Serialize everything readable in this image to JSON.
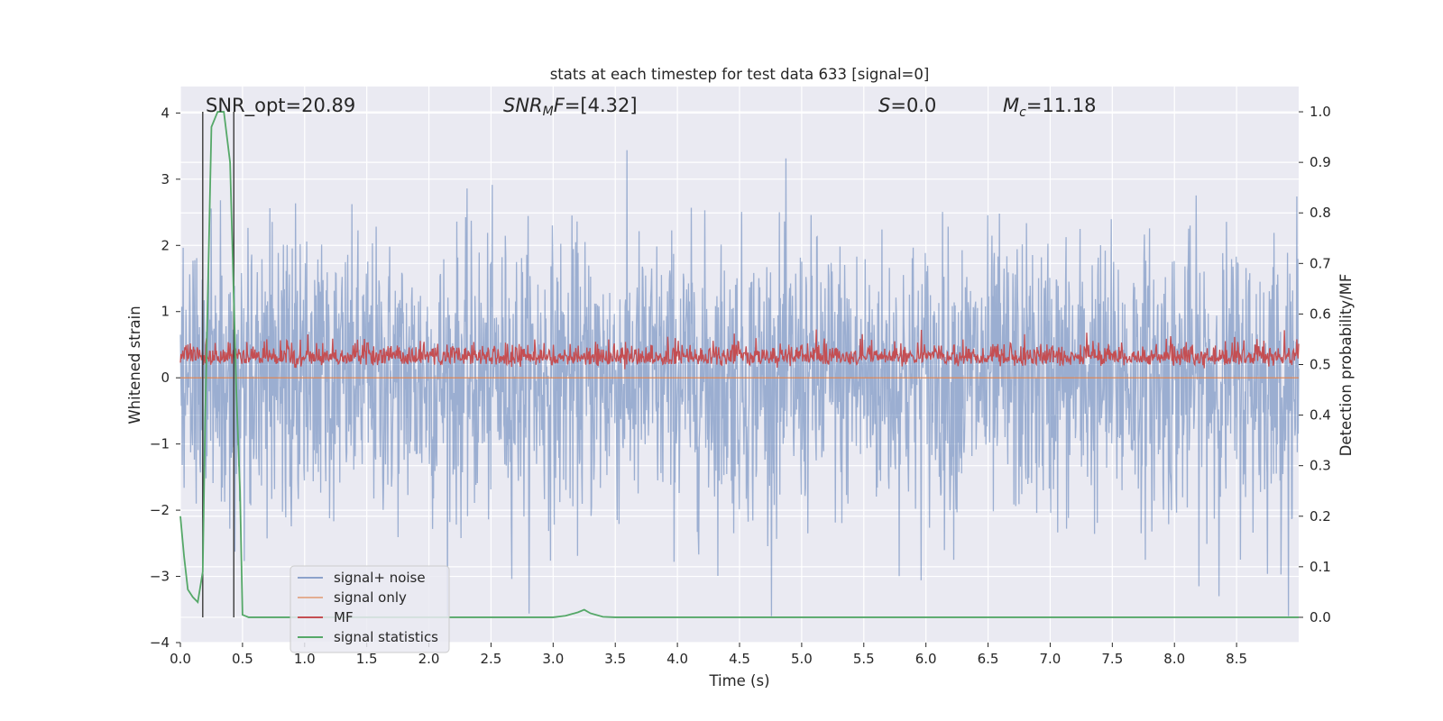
{
  "chart_data": {
    "type": "line",
    "title": "stats at each timestep for test data 633 [signal=0]",
    "xlabel": "Time (s)",
    "ylabel": "Whitened strain",
    "ylabel_right": "Detection probability/MF",
    "xlim": [
      0.0,
      9.0
    ],
    "ylim": [
      -4.0,
      4.4
    ],
    "ylim_right": [
      -0.05,
      1.05
    ],
    "x_ticks": [
      "0.0",
      "0.5",
      "1.0",
      "1.5",
      "2.0",
      "2.5",
      "3.0",
      "3.5",
      "4.0",
      "4.5",
      "5.0",
      "5.5",
      "6.0",
      "6.5",
      "7.0",
      "7.5",
      "8.0",
      "8.5"
    ],
    "y_ticks": [
      "4",
      "3",
      "2",
      "1",
      "0",
      "−1",
      "−2",
      "−3",
      "−4"
    ],
    "y_ticks_right": [
      "1.0",
      "0.9",
      "0.8",
      "0.7",
      "0.6",
      "0.5",
      "0.4",
      "0.3",
      "0.2",
      "0.1",
      "0.0"
    ],
    "grid": true,
    "legend_position": "lower-left",
    "annotations": {
      "snr_opt": "SNR_opt=20.89",
      "snr_mf": "=[4.32]",
      "s_value": "=0.0",
      "mc_value": "=11.18"
    },
    "vertical_lines_x": [
      0.18,
      0.43
    ],
    "series": [
      {
        "name": "signal+ noise",
        "color": "#4c72b0",
        "axis": "left",
        "description_values": {
          "mean": 0.0,
          "amplitude_range": [
            -3.6,
            4.0
          ]
        }
      },
      {
        "name": "signal only",
        "color": "#dd8452",
        "axis": "left",
        "values_constant": 0.0
      },
      {
        "name": "MF",
        "color": "#c44e52",
        "axis": "left",
        "description_values": {
          "range": [
            0.05,
            0.96
          ]
        }
      },
      {
        "name": "signal statistics",
        "color": "#55a868",
        "axis": "right",
        "x": [
          0.0,
          0.03,
          0.06,
          0.1,
          0.14,
          0.18,
          0.2,
          0.25,
          0.3,
          0.35,
          0.4,
          0.45,
          0.48,
          0.5,
          0.55,
          3.0,
          3.1,
          3.2,
          3.25,
          3.3,
          3.4,
          3.5,
          9.0
        ],
        "y": [
          0.2,
          0.12,
          0.055,
          0.04,
          0.03,
          0.09,
          0.4,
          0.97,
          1.0,
          1.0,
          0.9,
          0.45,
          0.25,
          0.005,
          0.0,
          0.0,
          0.003,
          0.01,
          0.015,
          0.008,
          0.001,
          0.0,
          0.0
        ]
      }
    ],
    "colors": {
      "background": "#eaeaf2",
      "grid": "#ffffff"
    }
  }
}
